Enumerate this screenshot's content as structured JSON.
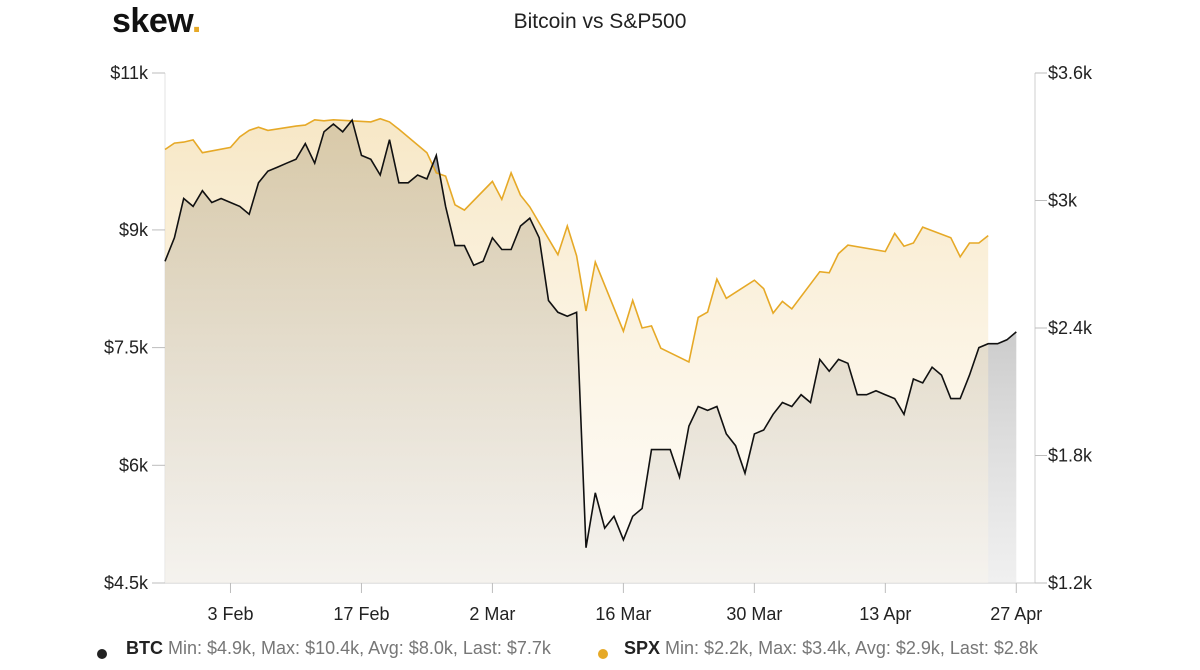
{
  "brand": {
    "name": "skew",
    "dot": ".",
    "accent_color": "#e6a927"
  },
  "chart_data": {
    "type": "area",
    "title": "Bitcoin vs S&P500",
    "x_labels": [
      "3 Feb",
      "17 Feb",
      "2 Mar",
      "16 Mar",
      "30 Mar",
      "13 Apr",
      "27 Apr"
    ],
    "y_left_ticks": [
      "$4.5k",
      "$6k",
      "$7.5k",
      "$9k",
      "$11k"
    ],
    "y_right_ticks": [
      "$1.2k",
      "$1.8k",
      "$2.4k",
      "$3k",
      "$3.6k"
    ],
    "y_left_range": [
      4500,
      11000
    ],
    "y_right_range": [
      1200,
      3600
    ],
    "x_range": [
      "2020-01-27",
      "2020-04-29"
    ],
    "series": [
      {
        "name": "BTC",
        "axis": "left",
        "color": "#111111",
        "fill": "gray",
        "points": [
          [
            "2020-01-27",
            8600
          ],
          [
            "2020-01-28",
            8900
          ],
          [
            "2020-01-29",
            9400
          ],
          [
            "2020-01-30",
            9300
          ],
          [
            "2020-01-31",
            9500
          ],
          [
            "2020-02-01",
            9350
          ],
          [
            "2020-02-02",
            9400
          ],
          [
            "2020-02-03",
            9350
          ],
          [
            "2020-02-04",
            9300
          ],
          [
            "2020-02-05",
            9200
          ],
          [
            "2020-02-06",
            9600
          ],
          [
            "2020-02-07",
            9750
          ],
          [
            "2020-02-08",
            9800
          ],
          [
            "2020-02-09",
            9850
          ],
          [
            "2020-02-10",
            9900
          ],
          [
            "2020-02-11",
            10100
          ],
          [
            "2020-02-12",
            9850
          ],
          [
            "2020-02-13",
            10250
          ],
          [
            "2020-02-14",
            10350
          ],
          [
            "2020-02-15",
            10250
          ],
          [
            "2020-02-16",
            10400
          ],
          [
            "2020-02-17",
            9950
          ],
          [
            "2020-02-18",
            9900
          ],
          [
            "2020-02-19",
            9700
          ],
          [
            "2020-02-20",
            10150
          ],
          [
            "2020-02-21",
            9600
          ],
          [
            "2020-02-22",
            9600
          ],
          [
            "2020-02-23",
            9700
          ],
          [
            "2020-02-24",
            9650
          ],
          [
            "2020-02-25",
            9950
          ],
          [
            "2020-02-26",
            9300
          ],
          [
            "2020-02-27",
            8800
          ],
          [
            "2020-02-28",
            8800
          ],
          [
            "2020-02-29",
            8550
          ],
          [
            "2020-03-01",
            8600
          ],
          [
            "2020-03-02",
            8900
          ],
          [
            "2020-03-03",
            8750
          ],
          [
            "2020-03-04",
            8750
          ],
          [
            "2020-03-05",
            9050
          ],
          [
            "2020-03-06",
            9150
          ],
          [
            "2020-03-07",
            8900
          ],
          [
            "2020-03-08",
            8100
          ],
          [
            "2020-03-09",
            7950
          ],
          [
            "2020-03-10",
            7900
          ],
          [
            "2020-03-11",
            7950
          ],
          [
            "2020-03-12",
            4950
          ],
          [
            "2020-03-13",
            5650
          ],
          [
            "2020-03-14",
            5200
          ],
          [
            "2020-03-15",
            5350
          ],
          [
            "2020-03-16",
            5050
          ],
          [
            "2020-03-17",
            5350
          ],
          [
            "2020-03-18",
            5450
          ],
          [
            "2020-03-19",
            6200
          ],
          [
            "2020-03-20",
            6200
          ],
          [
            "2020-03-21",
            6200
          ],
          [
            "2020-03-22",
            5850
          ],
          [
            "2020-03-23",
            6500
          ],
          [
            "2020-03-24",
            6750
          ],
          [
            "2020-03-25",
            6700
          ],
          [
            "2020-03-26",
            6750
          ],
          [
            "2020-03-27",
            6400
          ],
          [
            "2020-03-28",
            6250
          ],
          [
            "2020-03-29",
            5900
          ],
          [
            "2020-03-30",
            6400
          ],
          [
            "2020-03-31",
            6450
          ],
          [
            "2020-04-01",
            6650
          ],
          [
            "2020-04-02",
            6800
          ],
          [
            "2020-04-03",
            6750
          ],
          [
            "2020-04-04",
            6900
          ],
          [
            "2020-04-05",
            6800
          ],
          [
            "2020-04-06",
            7350
          ],
          [
            "2020-04-07",
            7200
          ],
          [
            "2020-04-08",
            7350
          ],
          [
            "2020-04-09",
            7300
          ],
          [
            "2020-04-10",
            6900
          ],
          [
            "2020-04-11",
            6900
          ],
          [
            "2020-04-12",
            6950
          ],
          [
            "2020-04-13",
            6900
          ],
          [
            "2020-04-14",
            6850
          ],
          [
            "2020-04-15",
            6650
          ],
          [
            "2020-04-16",
            7100
          ],
          [
            "2020-04-17",
            7050
          ],
          [
            "2020-04-18",
            7250
          ],
          [
            "2020-04-19",
            7150
          ],
          [
            "2020-04-20",
            6850
          ],
          [
            "2020-04-21",
            6850
          ],
          [
            "2020-04-22",
            7150
          ],
          [
            "2020-04-23",
            7500
          ],
          [
            "2020-04-24",
            7550
          ],
          [
            "2020-04-25",
            7550
          ],
          [
            "2020-04-26",
            7600
          ],
          [
            "2020-04-27",
            7700
          ]
        ]
      },
      {
        "name": "SPX",
        "axis": "right",
        "color": "#e6a927",
        "fill": "gold",
        "points": [
          [
            "2020-01-27",
            3240
          ],
          [
            "2020-01-28",
            3270
          ],
          [
            "2020-01-29",
            3275
          ],
          [
            "2020-01-30",
            3285
          ],
          [
            "2020-01-31",
            3225
          ],
          [
            "2020-02-03",
            3250
          ],
          [
            "2020-02-04",
            3300
          ],
          [
            "2020-02-05",
            3330
          ],
          [
            "2020-02-06",
            3345
          ],
          [
            "2020-02-07",
            3330
          ],
          [
            "2020-02-10",
            3350
          ],
          [
            "2020-02-11",
            3355
          ],
          [
            "2020-02-12",
            3380
          ],
          [
            "2020-02-13",
            3375
          ],
          [
            "2020-02-14",
            3380
          ],
          [
            "2020-02-18",
            3370
          ],
          [
            "2020-02-19",
            3385
          ],
          [
            "2020-02-20",
            3370
          ],
          [
            "2020-02-21",
            3335
          ],
          [
            "2020-02-24",
            3225
          ],
          [
            "2020-02-25",
            3130
          ],
          [
            "2020-02-26",
            3115
          ],
          [
            "2020-02-27",
            2980
          ],
          [
            "2020-02-28",
            2955
          ],
          [
            "2020-03-02",
            3090
          ],
          [
            "2020-03-03",
            3005
          ],
          [
            "2020-03-04",
            3130
          ],
          [
            "2020-03-05",
            3025
          ],
          [
            "2020-03-06",
            2970
          ],
          [
            "2020-03-09",
            2745
          ],
          [
            "2020-03-10",
            2880
          ],
          [
            "2020-03-11",
            2740
          ],
          [
            "2020-03-12",
            2480
          ],
          [
            "2020-03-13",
            2710
          ],
          [
            "2020-03-16",
            2385
          ],
          [
            "2020-03-17",
            2530
          ],
          [
            "2020-03-18",
            2400
          ],
          [
            "2020-03-19",
            2410
          ],
          [
            "2020-03-20",
            2305
          ],
          [
            "2020-03-23",
            2240
          ],
          [
            "2020-03-24",
            2450
          ],
          [
            "2020-03-25",
            2475
          ],
          [
            "2020-03-26",
            2630
          ],
          [
            "2020-03-27",
            2540
          ],
          [
            "2020-03-30",
            2625
          ],
          [
            "2020-03-31",
            2585
          ],
          [
            "2020-04-01",
            2470
          ],
          [
            "2020-04-02",
            2525
          ],
          [
            "2020-04-03",
            2490
          ],
          [
            "2020-04-06",
            2665
          ],
          [
            "2020-04-07",
            2660
          ],
          [
            "2020-04-08",
            2750
          ],
          [
            "2020-04-09",
            2790
          ],
          [
            "2020-04-13",
            2760
          ],
          [
            "2020-04-14",
            2845
          ],
          [
            "2020-04-15",
            2785
          ],
          [
            "2020-04-16",
            2800
          ],
          [
            "2020-04-17",
            2875
          ],
          [
            "2020-04-20",
            2825
          ],
          [
            "2020-04-21",
            2735
          ],
          [
            "2020-04-22",
            2800
          ],
          [
            "2020-04-23",
            2800
          ],
          [
            "2020-04-24",
            2835
          ]
        ]
      }
    ],
    "legend": [
      {
        "name": "BTC",
        "stats": "Min: $4.9k, Max: $10.4k, Avg: $8.0k, Last: $7.7k",
        "color": "#111111"
      },
      {
        "name": "SPX",
        "stats": "Min: $2.2k, Max: $3.4k, Avg: $2.9k, Last: $2.8k",
        "color": "#e6a927"
      }
    ]
  }
}
